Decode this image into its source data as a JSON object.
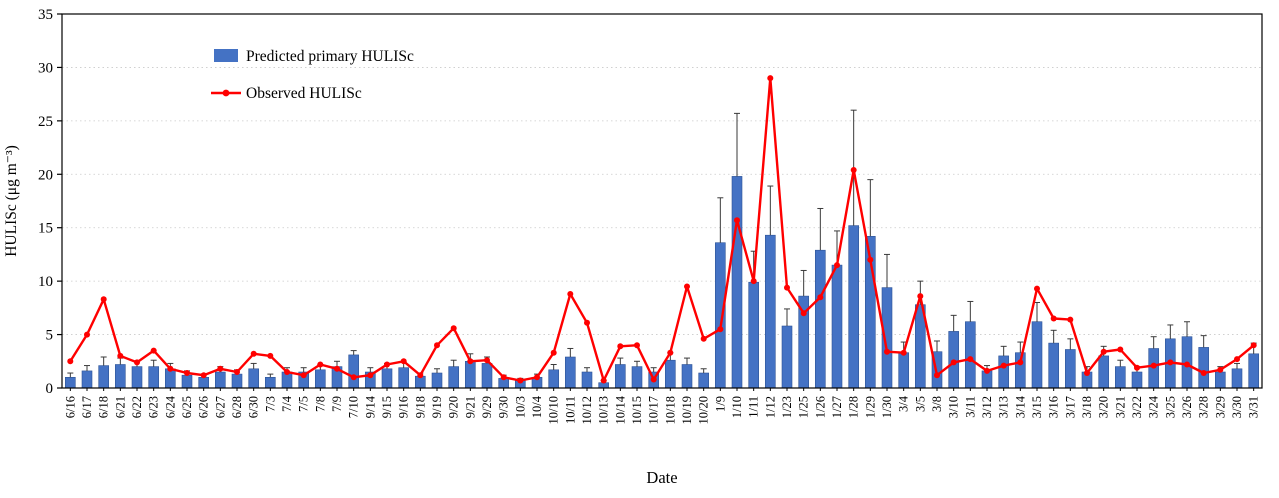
{
  "figure": {
    "background": "#ffffff"
  },
  "chart_data": {
    "type": "bar+line",
    "title": "",
    "xlabel": "Date",
    "ylabel": "HULISc (μg m⁻³)",
    "ylim": [
      0,
      35
    ],
    "ytick_interval": 5,
    "grid": "horizontal-dotted",
    "legend_position": "top-left-inside",
    "frame": "full-box",
    "colors": {
      "bar": "#4472C4",
      "bar_edge": "#2E5496",
      "line": "#FF0000",
      "error": "#3a3a3a",
      "grid": "#c9c9c9"
    },
    "categories": [
      "6/16",
      "6/17",
      "6/18",
      "6/21",
      "6/22",
      "6/23",
      "6/24",
      "6/25",
      "6/26",
      "6/27",
      "6/28",
      "6/30",
      "7/3",
      "7/4",
      "7/5",
      "7/8",
      "7/9",
      "7/10",
      "9/14",
      "9/15",
      "9/16",
      "9/18",
      "9/19",
      "9/20",
      "9/21",
      "9/29",
      "9/30",
      "10/3",
      "10/4",
      "10/10",
      "10/11",
      "10/12",
      "10/13",
      "10/14",
      "10/15",
      "10/17",
      "10/18",
      "10/19",
      "10/20",
      "1/9",
      "1/10",
      "1/11",
      "1/12",
      "1/23",
      "1/25",
      "1/26",
      "1/27",
      "1/28",
      "1/29",
      "1/30",
      "3/4",
      "3/5",
      "3/8",
      "3/10",
      "3/11",
      "3/12",
      "3/13",
      "3/14",
      "3/15",
      "3/16",
      "3/17",
      "3/18",
      "3/20",
      "3/21",
      "3/22",
      "3/24",
      "3/25",
      "3/26",
      "3/28",
      "3/29",
      "3/30",
      "3/31"
    ],
    "series": [
      {
        "name": "Predicted primary HULISc",
        "type": "bar",
        "color": "#4472C4",
        "values": [
          1.0,
          1.6,
          2.1,
          2.2,
          2.0,
          2.0,
          1.8,
          1.2,
          1.0,
          1.5,
          1.3,
          1.8,
          1.0,
          1.5,
          1.5,
          1.7,
          2.0,
          3.1,
          1.5,
          1.8,
          1.9,
          1.1,
          1.4,
          2.0,
          2.5,
          2.3,
          0.9,
          0.7,
          1.0,
          1.7,
          2.9,
          1.5,
          0.5,
          2.2,
          2.0,
          1.5,
          2.6,
          2.2,
          1.4,
          13.6,
          19.8,
          9.9,
          14.3,
          5.8,
          8.6,
          12.9,
          11.5,
          15.2,
          14.2,
          9.4,
          3.3,
          7.8,
          3.4,
          5.3,
          6.2,
          1.6,
          3.0,
          3.3,
          6.2,
          4.2,
          3.6,
          1.5,
          3.0,
          2.0,
          1.5,
          3.7,
          4.6,
          4.8,
          3.8,
          1.5,
          1.8,
          3.2
        ],
        "error_up": [
          0.4,
          0.5,
          0.8,
          0.6,
          0.5,
          0.6,
          0.5,
          0.4,
          0.3,
          0.5,
          0.4,
          0.5,
          0.3,
          0.4,
          0.4,
          0.5,
          0.5,
          0.4,
          0.4,
          0.5,
          0.5,
          0.3,
          0.4,
          0.6,
          0.7,
          0.6,
          0.3,
          0.2,
          0.3,
          0.5,
          0.8,
          0.4,
          0.2,
          0.6,
          0.5,
          0.4,
          0.7,
          0.6,
          0.4,
          4.2,
          5.9,
          2.9,
          4.6,
          1.6,
          2.4,
          3.9,
          3.2,
          10.8,
          5.3,
          3.1,
          1.0,
          2.2,
          1.0,
          1.5,
          1.9,
          0.5,
          0.9,
          1.0,
          1.8,
          1.2,
          1.0,
          0.5,
          0.9,
          0.6,
          0.5,
          1.1,
          1.3,
          1.4,
          1.1,
          0.5,
          0.5,
          1.0
        ]
      },
      {
        "name": "Observed HULISc",
        "type": "line",
        "color": "#FF0000",
        "marker": "circle",
        "values": [
          2.5,
          5.0,
          8.3,
          3.0,
          2.4,
          3.5,
          1.8,
          1.4,
          1.2,
          1.8,
          1.5,
          3.2,
          3.0,
          1.5,
          1.2,
          2.2,
          1.8,
          1.0,
          1.2,
          2.2,
          2.5,
          1.2,
          4.0,
          5.6,
          2.5,
          2.6,
          1.0,
          0.7,
          1.0,
          3.3,
          8.8,
          6.1,
          0.7,
          3.9,
          4.0,
          0.8,
          3.3,
          9.5,
          4.6,
          5.5,
          15.7,
          10.0,
          29.0,
          9.4,
          7.0,
          8.5,
          11.5,
          20.4,
          12.0,
          3.4,
          3.3,
          8.6,
          1.2,
          2.4,
          2.7,
          1.6,
          2.1,
          2.4,
          9.3,
          6.5,
          6.4,
          1.4,
          3.4,
          3.6,
          1.9,
          2.1,
          2.4,
          2.2,
          1.4,
          1.7,
          2.7,
          4.0
        ]
      }
    ],
    "yticks": [
      0,
      5,
      10,
      15,
      20,
      25,
      30,
      35
    ]
  }
}
